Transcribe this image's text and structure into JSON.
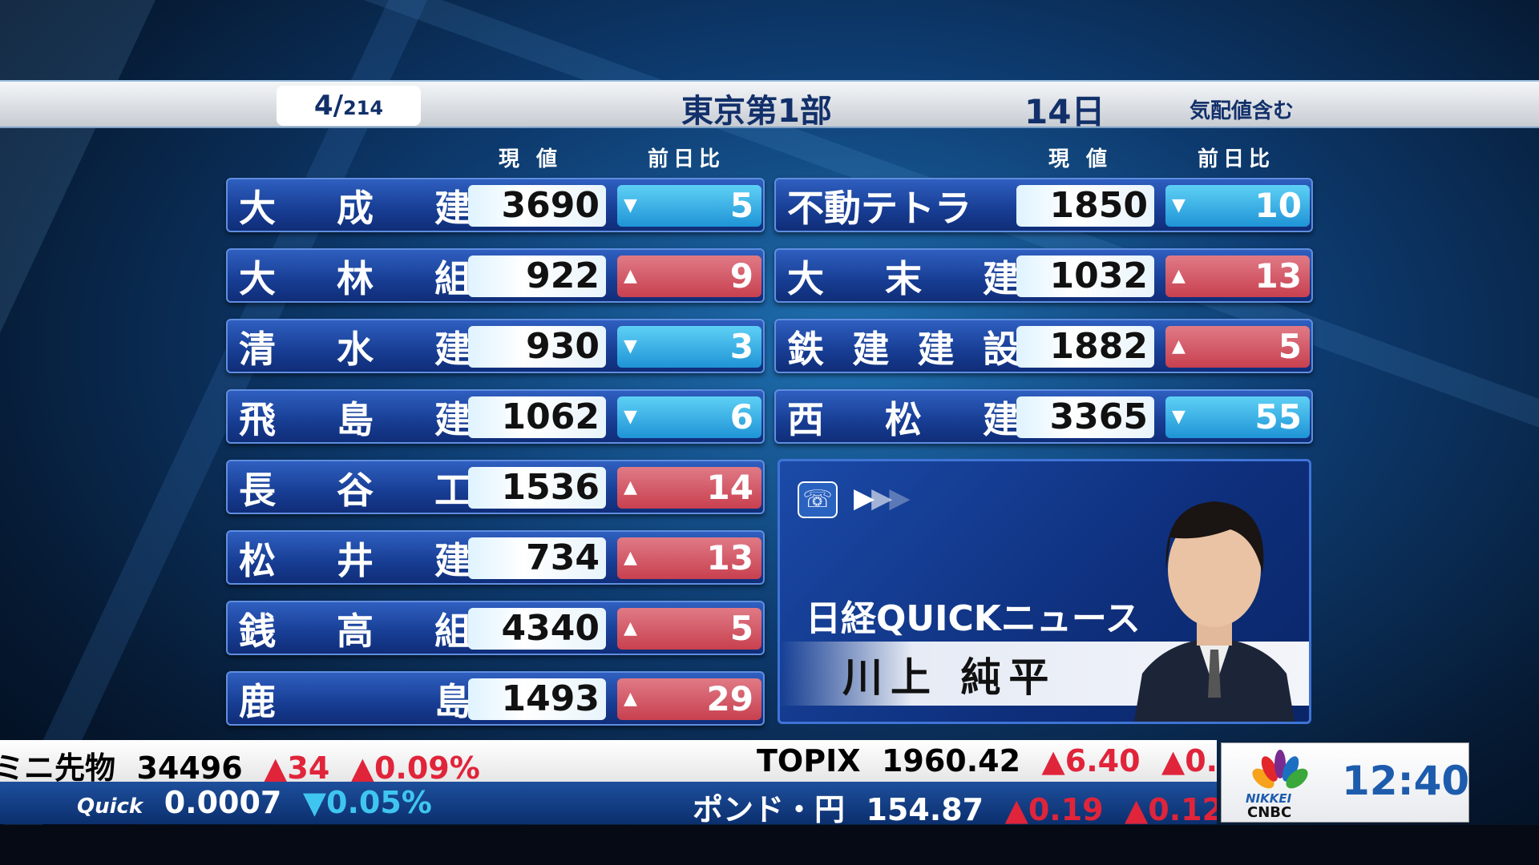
{
  "header": {
    "page_current": "4",
    "page_total": "214",
    "market": "東京第1部",
    "date": "14日",
    "note": "気配値含む"
  },
  "columns": {
    "price": "現 値",
    "change": "前日比"
  },
  "colors": {
    "up": "#c8404f",
    "down": "#1f94d6",
    "navy": "#12306a"
  },
  "stocks_left": [
    {
      "name": [
        "大",
        "成",
        "建"
      ],
      "price": "3690",
      "dir": "down",
      "change": "5"
    },
    {
      "name": [
        "大",
        "林",
        "組"
      ],
      "price": "922",
      "dir": "up",
      "change": "9"
    },
    {
      "name": [
        "清",
        "水",
        "建"
      ],
      "price": "930",
      "dir": "down",
      "change": "3"
    },
    {
      "name": [
        "飛",
        "島",
        "建"
      ],
      "price": "1062",
      "dir": "down",
      "change": "6"
    },
    {
      "name": [
        "長",
        "谷",
        "工"
      ],
      "price": "1536",
      "dir": "up",
      "change": "14"
    },
    {
      "name": [
        "松",
        "井",
        "建"
      ],
      "price": "734",
      "dir": "up",
      "change": "13"
    },
    {
      "name": [
        "銭",
        "高",
        "組"
      ],
      "price": "4340",
      "dir": "up",
      "change": "5"
    },
    {
      "name": [
        "鹿",
        "",
        "島"
      ],
      "price": "1493",
      "dir": "up",
      "change": "29"
    }
  ],
  "stocks_right": [
    {
      "name": [
        "不動テトラ"
      ],
      "price": "1850",
      "dir": "down",
      "change": "10"
    },
    {
      "name": [
        "大",
        "末",
        "建"
      ],
      "price": "1032",
      "dir": "up",
      "change": "13"
    },
    {
      "name": [
        "鉄",
        "建",
        "建",
        "設"
      ],
      "price": "1882",
      "dir": "up",
      "change": "5"
    },
    {
      "name": [
        "西",
        "松",
        "建"
      ],
      "price": "3365",
      "dir": "down",
      "change": "55"
    }
  ],
  "news": {
    "title": "日経QUICKニュース",
    "reporter": "川上 純平",
    "icons": [
      "phone-icon",
      "play-arrows-icon"
    ]
  },
  "ticker": {
    "row1": [
      {
        "label": "ミニ先物",
        "value": "34496",
        "chg": "▲34",
        "pct": "▲0.09%"
      },
      {
        "label": "TOPIX",
        "value": "1960.42",
        "chg": "▲6.40",
        "pct": "▲0."
      }
    ],
    "row2": [
      {
        "label": "Quick",
        "value": "0.0007",
        "chg": "",
        "pct": "▼0.05%"
      },
      {
        "label": "ポンド・円",
        "value": "154.87",
        "chg": "▲0.19",
        "pct": "▲0.12"
      }
    ]
  },
  "logo": {
    "brand1": "NIKKEI",
    "brand2": "CNBC",
    "time": "12:40"
  }
}
